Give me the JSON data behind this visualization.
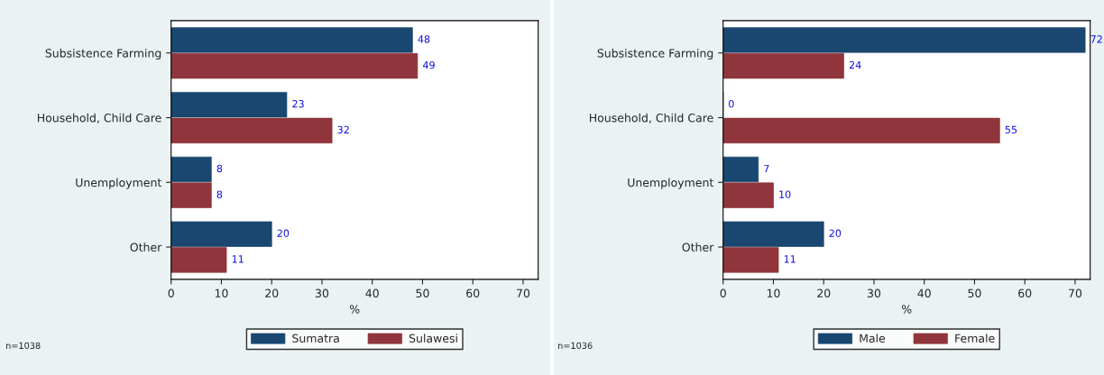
{
  "chart_data": [
    {
      "type": "bar",
      "orientation": "horizontal",
      "categories": [
        "Subsistence Farming",
        "Household, Child Care",
        "Unemployment",
        "Other"
      ],
      "xlabel": "%",
      "xlim": [
        0,
        73
      ],
      "xticks": [
        0,
        10,
        20,
        30,
        40,
        50,
        60,
        70
      ],
      "data_labels": true,
      "legend": "bottom",
      "annotations": [
        "n=1038"
      ],
      "series": [
        {
          "name": "Sumatra",
          "color": "#1a476f",
          "values": [
            48,
            23,
            8,
            20
          ]
        },
        {
          "name": "Sulawesi",
          "color": "#90353b",
          "values": [
            49,
            32,
            8,
            11
          ]
        }
      ]
    },
    {
      "type": "bar",
      "orientation": "horizontal",
      "categories": [
        "Subsistence Farming",
        "Household, Child Care",
        "Unemployment",
        "Other"
      ],
      "xlabel": "%",
      "xlim": [
        0,
        73
      ],
      "xticks": [
        0,
        10,
        20,
        30,
        40,
        50,
        60,
        70
      ],
      "data_labels": true,
      "legend": "bottom",
      "annotations": [
        "n=1036"
      ],
      "series": [
        {
          "name": "Male",
          "color": "#1a476f",
          "values": [
            72,
            0,
            7,
            20
          ]
        },
        {
          "name": "Female",
          "color": "#90353b",
          "values": [
            24,
            55,
            10,
            11
          ]
        }
      ]
    }
  ]
}
